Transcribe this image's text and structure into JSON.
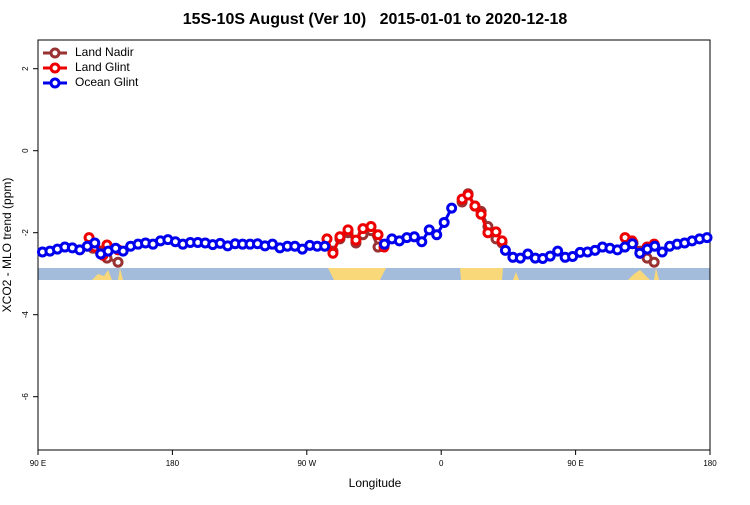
{
  "chart_data": {
    "type": "line",
    "title": "15S-10S August (Ver 10)   2015-01-01 to 2020-12-18",
    "xlabel": "Longitude",
    "ylabel": "XCO2 - MLO trend (ppm)",
    "xlim": [
      90,
      540
    ],
    "xticks": [
      {
        "value": 90,
        "label": "90 E"
      },
      180,
      {
        "value": 270,
        "label": "90 W"
      },
      {
        "value": 360,
        "label": "0"
      },
      {
        "value": 450,
        "label": "90 E"
      },
      {
        "value": 540,
        "label": "180"
      }
    ],
    "ylim": [
      -7.3,
      2.7
    ],
    "yticks": [
      2,
      0,
      -2,
      -4,
      -6
    ],
    "grid": false,
    "legend": "top-left",
    "series": [
      {
        "name": "Land Nadir",
        "color": "#993333",
        "x": [
          126.8,
          131.5,
          136.2,
          143.6,
          200,
          287.5,
          292.2,
          297.6,
          302.9,
          307.6,
          313,
          317.7,
          350,
          374,
          378,
          382.6,
          386.7,
          391.3,
          396.7,
          400.7,
          440,
          488.5,
          493.2,
          497.9,
          502.6
        ],
        "values": [
          -2.38,
          -2.45,
          -2.62,
          -2.72,
          null,
          -2.45,
          -2.15,
          -2.0,
          -2.25,
          -2.05,
          -1.95,
          -2.35,
          null,
          -1.25,
          -1.05,
          -1.35,
          -1.48,
          -1.85,
          -2.15,
          -2.25,
          null,
          -2.25,
          -2.45,
          -2.62,
          -2.72
        ]
      },
      {
        "name": "Land Glint",
        "color": "#ee0000",
        "x": [
          124.2,
          128.2,
          133.5,
          136.2,
          143.6,
          200,
          283.5,
          287.5,
          292.2,
          297.6,
          302.9,
          307.6,
          313,
          317.7,
          321.7,
          350,
          374,
          378,
          382.6,
          386.7,
          391.3,
          396.7,
          400.7,
          440,
          483.1,
          487.8,
          493.2,
          497.9,
          502.6
        ],
        "values": [
          -2.12,
          -2.35,
          -2.55,
          -2.3,
          -2.42,
          null,
          -2.15,
          -2.5,
          -2.1,
          -1.93,
          -2.18,
          -1.9,
          -1.85,
          -2.05,
          -2.35,
          null,
          -1.18,
          -1.08,
          -1.35,
          -1.55,
          -2.0,
          -1.98,
          -2.2,
          null,
          -2.12,
          -2.2,
          -2.5,
          -2.35,
          -2.28
        ]
      },
      {
        "name": "Ocean Glint",
        "color": "#0000ee",
        "x": [
          93,
          98,
          103,
          108,
          113,
          118,
          123,
          128,
          132,
          137,
          142,
          147,
          152,
          157,
          162,
          167,
          172,
          177,
          182,
          187,
          192,
          197,
          202,
          207,
          212,
          217,
          222,
          227,
          232,
          237,
          242,
          247,
          252,
          257,
          262,
          267,
          272,
          277,
          282,
          300,
          322,
          327,
          332,
          337,
          342,
          347,
          352,
          357,
          362,
          367,
          385,
          403,
          408,
          413,
          418,
          423,
          428,
          433,
          438,
          443,
          448,
          453,
          458,
          463,
          468,
          473,
          478,
          483,
          488,
          493,
          498,
          503,
          508,
          513,
          518,
          523,
          528,
          533,
          538
        ],
        "values": [
          -2.47,
          -2.45,
          -2.4,
          -2.35,
          -2.37,
          -2.42,
          -2.33,
          -2.25,
          -2.52,
          -2.45,
          -2.38,
          -2.45,
          -2.33,
          -2.28,
          -2.25,
          -2.28,
          -2.2,
          -2.17,
          -2.22,
          -2.28,
          -2.24,
          -2.24,
          -2.25,
          -2.29,
          -2.26,
          -2.32,
          -2.27,
          -2.28,
          -2.28,
          -2.27,
          -2.32,
          -2.28,
          -2.37,
          -2.33,
          -2.33,
          -2.4,
          -2.31,
          -2.33,
          -2.33,
          null,
          -2.28,
          -2.15,
          -2.2,
          -2.12,
          -2.1,
          -2.22,
          -1.93,
          -2.05,
          -1.75,
          -1.4,
          null,
          -2.43,
          -2.6,
          -2.62,
          -2.52,
          -2.62,
          -2.63,
          -2.57,
          -2.45,
          -2.6,
          -2.58,
          -2.48,
          -2.47,
          -2.43,
          -2.35,
          -2.38,
          -2.42,
          -2.35,
          -2.27,
          -2.5,
          -2.4,
          -2.33,
          -2.47,
          -2.33,
          -2.28,
          -2.25,
          -2.2,
          -2.15,
          -2.12
        ]
      }
    ]
  }
}
